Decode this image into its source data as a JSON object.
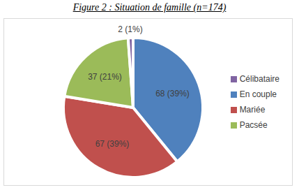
{
  "chart_data": {
    "type": "pie",
    "title": "Figure 2 : Situation de famille (n=174)",
    "categories": [
      "En couple",
      "Mariée",
      "Pacsée",
      "Célibataire"
    ],
    "values": [
      68,
      67,
      37,
      2
    ],
    "value_labels": [
      "68 (39%)",
      "67 (39%)",
      "37 (21%)",
      "2 (1%)"
    ],
    "colors": [
      "#4f81bd",
      "#c0504d",
      "#9bbb59",
      "#8064a2"
    ],
    "data_labels": true,
    "legend": "right"
  }
}
